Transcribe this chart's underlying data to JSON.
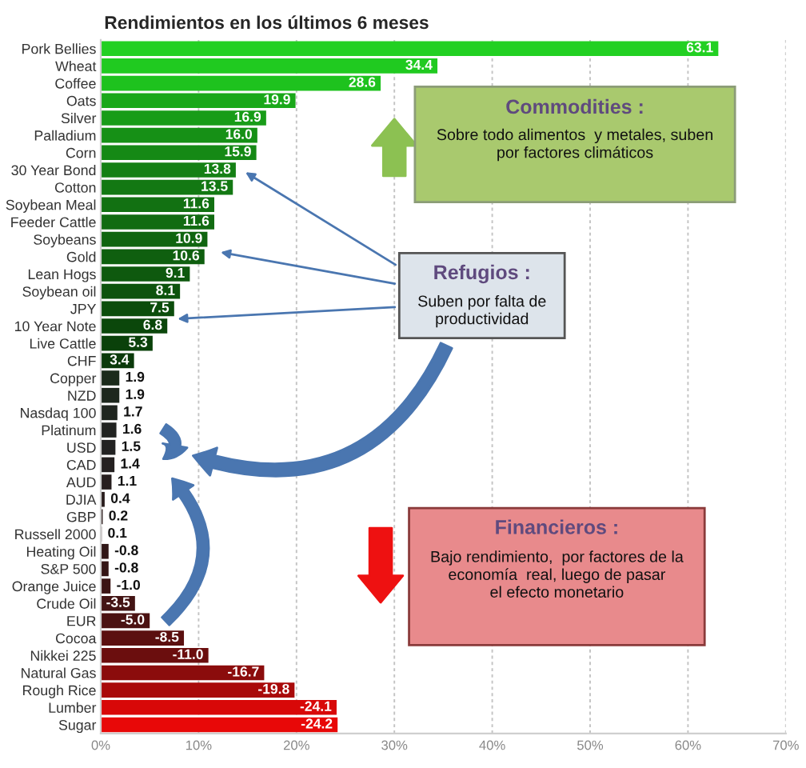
{
  "chart_data": {
    "type": "bar",
    "orientation": "horizontal",
    "title": "Rendimientos en los últimos 6 meses",
    "categories": [
      "Pork Bellies",
      "Wheat",
      "Coffee",
      "Oats",
      "Silver",
      "Palladium",
      "Corn",
      "30 Year Bond",
      "Cotton",
      "Soybean Meal",
      "Feeder Cattle",
      "Soybeans",
      "Gold",
      "Lean Hogs",
      "Soybean oil",
      "JPY",
      "10 Year Note",
      "Live Cattle",
      "CHF",
      "Copper",
      "NZD",
      "Nasdaq 100",
      "Platinum",
      "USD",
      "CAD",
      "AUD",
      "DJIA",
      "GBP",
      "Russell 2000",
      "Heating Oil",
      "S&P 500",
      "Orange Juice",
      "Crude Oil",
      "EUR",
      "Cocoa",
      "Nikkei 225",
      "Natural Gas",
      "Rough Rice",
      "Lumber",
      "Sugar"
    ],
    "values": [
      63.1,
      34.4,
      28.6,
      19.9,
      16.9,
      16.0,
      15.9,
      13.8,
      13.5,
      11.6,
      11.6,
      10.9,
      10.6,
      9.1,
      8.1,
      7.5,
      6.8,
      5.3,
      3.4,
      1.9,
      1.9,
      1.7,
      1.6,
      1.5,
      1.4,
      1.1,
      0.4,
      0.2,
      0.1,
      -0.8,
      -0.8,
      -1.0,
      -3.5,
      -5.0,
      -8.5,
      -11.0,
      -16.7,
      -19.8,
      -24.1,
      -24.2
    ],
    "base": [
      0,
      0,
      0,
      0,
      0,
      0,
      0,
      0,
      0,
      0,
      0,
      0,
      0,
      0,
      0,
      0,
      0,
      0,
      0,
      0,
      0,
      0,
      0,
      0,
      0,
      0,
      0,
      0,
      0,
      0.8,
      0.8,
      1.0,
      3.5,
      5.0,
      8.5,
      11.0,
      16.7,
      19.8,
      24.1,
      24.2
    ],
    "value_labels": [
      "63.1",
      "34.4",
      "28.6",
      "19.9",
      "16.9",
      "16.0",
      "15.9",
      "13.8",
      "13.5",
      "11.6",
      "11.6",
      "10.9",
      "10.6",
      "9.1",
      "8.1",
      "7.5",
      "6.8",
      "5.3",
      "3.4",
      "1.9",
      "1.9",
      "1.7",
      "1.6",
      "1.5",
      "1.4",
      "1.1",
      "0.4",
      "0.2",
      "0.1",
      "-0.8",
      "-0.8",
      "-1.0",
      "-3.5",
      "-5.0",
      "-8.5",
      "-11.0",
      "-16.7",
      "-19.8",
      "-24.1",
      "-24.2"
    ],
    "colors": [
      "#22d022",
      "#20ca20",
      "#1ec21e",
      "#1aa81a",
      "#189c18",
      "#169016",
      "#158915",
      "#148014",
      "#137813",
      "#127112",
      "#116b11",
      "#106510",
      "#0f5f0f",
      "#0e590e",
      "#0d530d",
      "#0c4d0c",
      "#0b470b",
      "#0a410a",
      "#0b3a0b",
      "#1b2b1b",
      "#1d271d",
      "#1f251f",
      "#212321",
      "#232323",
      "#252121",
      "#271f1f",
      "#291d1d",
      "#2b1b1b",
      "#2d1919",
      "#311717",
      "#351515",
      "#3b1515",
      "#431414",
      "#4b1212",
      "#5b1010",
      "#6b0e0e",
      "#8b0c0c",
      "#a90a0a",
      "#d80808",
      "#e80808"
    ],
    "xlim": [
      0,
      70
    ],
    "xticks": [
      {
        "value": 0,
        "label": "0%"
      },
      {
        "value": 10,
        "label": "10%"
      },
      {
        "value": 20,
        "label": "20%"
      },
      {
        "value": 30,
        "label": "30%"
      },
      {
        "value": 40,
        "label": "40%"
      },
      {
        "value": 50,
        "label": "50%"
      },
      {
        "value": 60,
        "label": "60%"
      },
      {
        "value": 70,
        "label": "70%"
      }
    ],
    "grid": "x",
    "annotations": [
      "Commodities :",
      "Sobre todo alimentos  y metales, suben\npor factores climáticos",
      "Refugios :",
      "Suben por falta de\nproductividad",
      "Financieros :",
      "Bajo rendimiento,  por factores de la\neconomía  real, luego de pasar\nel efecto monetario"
    ]
  }
}
